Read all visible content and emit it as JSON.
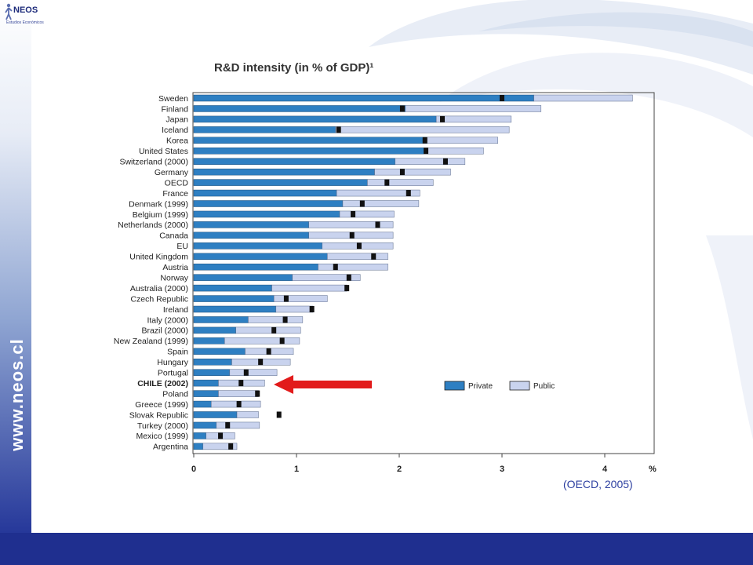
{
  "slide": {
    "side_url": "www.neos.cl",
    "logo_text": "NEOS",
    "logo_subtitle": "Estudios Económicos",
    "source": "(OECD, 2005)"
  },
  "colors": {
    "private": "#2e7fc2",
    "public": "#c9d3ee",
    "marker": "#111111",
    "arrow": "#e21b1b",
    "footer": "#1f2f8f"
  },
  "chart_data": {
    "type": "bar",
    "orientation": "horizontal",
    "stacked": true,
    "title": "R&D intensity (in % of GDP)¹",
    "xlabel": "%",
    "xlim": [
      0,
      4.4
    ],
    "xticks": [
      "0",
      "1",
      "2",
      "3",
      "4"
    ],
    "legend": {
      "placement": "right",
      "entries": [
        "Private",
        "Public"
      ]
    },
    "highlighted_category": "CHILE (2002)",
    "categories": [
      "Sweden",
      "Finland",
      "Japan",
      "Iceland",
      "Korea",
      "United States",
      "Switzerland (2000)",
      "Germany",
      "OECD",
      "France",
      "Denmark (1999)",
      "Belgium (1999)",
      "Netherlands (2000)",
      "Canada",
      "EU",
      "United Kingdom",
      "Austria",
      "Norway",
      "Australia (2000)",
      "Czech Republic",
      "Ireland",
      "Italy (2000)",
      "Brazil (2000)",
      "New Zealand (1999)",
      "Spain",
      "Hungary",
      "Portugal",
      "CHILE (2002)",
      "Poland",
      "Greece (1999)",
      "Slovak Republic",
      "Turkey (2000)",
      "Mexico (1999)",
      "Argentina"
    ],
    "series": [
      {
        "name": "Private",
        "values": [
          3.31,
          2.06,
          2.36,
          1.38,
          2.27,
          2.24,
          1.96,
          1.76,
          1.69,
          1.39,
          1.45,
          1.42,
          1.12,
          1.12,
          1.25,
          1.3,
          1.21,
          0.96,
          0.76,
          0.78,
          0.8,
          0.53,
          0.41,
          0.3,
          0.5,
          0.37,
          0.35,
          0.24,
          0.24,
          0.17,
          0.42,
          0.22,
          0.12,
          0.09
        ]
      },
      {
        "name": "Public",
        "values": [
          0.96,
          1.32,
          0.73,
          1.69,
          0.69,
          0.58,
          0.68,
          0.74,
          0.64,
          0.81,
          0.74,
          0.53,
          0.82,
          0.82,
          0.69,
          0.59,
          0.68,
          0.66,
          0.73,
          0.52,
          0.36,
          0.53,
          0.63,
          0.73,
          0.47,
          0.57,
          0.46,
          0.45,
          0.39,
          0.48,
          0.21,
          0.42,
          0.28,
          0.33
        ]
      }
    ],
    "total_markers": [
      3.0,
      2.03,
      2.42,
      1.41,
      2.25,
      2.26,
      2.45,
      2.03,
      1.88,
      2.09,
      1.64,
      1.55,
      1.79,
      1.54,
      1.61,
      1.75,
      1.38,
      1.51,
      1.49,
      0.9,
      1.15,
      0.89,
      0.78,
      0.86,
      0.73,
      0.65,
      0.51,
      0.46,
      0.62,
      0.44,
      0.83,
      0.33,
      0.26,
      0.36
    ]
  }
}
